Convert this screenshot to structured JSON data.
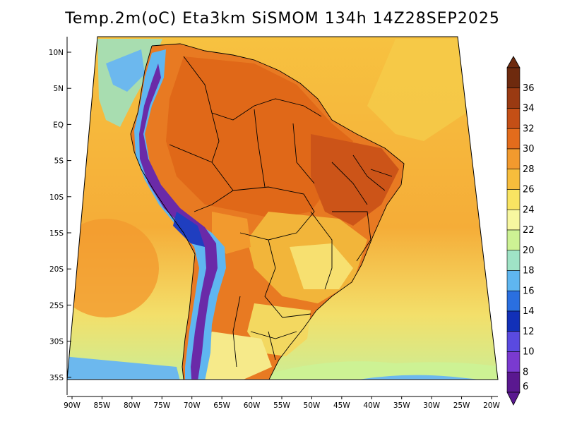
{
  "title": "Temp.2m(oC) Eta3km SiSMOM 134h 14Z28SEP2025",
  "map": {
    "lat_labels": [
      "10N",
      "5N",
      "EQ",
      "5S",
      "10S",
      "15S",
      "20S",
      "25S",
      "30S",
      "35S"
    ],
    "lon_labels": [
      "90W",
      "85W",
      "80W",
      "75W",
      "70W",
      "65W",
      "60W",
      "55W",
      "50W",
      "45W",
      "40W",
      "35W",
      "30W",
      "25W",
      "20W"
    ]
  },
  "colorbar": {
    "labels": [
      "36",
      "34",
      "32",
      "30",
      "28",
      "26",
      "24",
      "22",
      "20",
      "18",
      "16",
      "14",
      "12",
      "10",
      "8",
      "6"
    ],
    "colors": [
      "#6e2a0e",
      "#9a3a12",
      "#c44f16",
      "#e36c1c",
      "#f29a2e",
      "#f7bd3c",
      "#f9e462",
      "#f7f7a0",
      "#cdf294",
      "#9fe3c6",
      "#5fb6f0",
      "#2a6fe0",
      "#1230b8",
      "#5a4ae0",
      "#7a3ad0",
      "#5a1890"
    ]
  }
}
